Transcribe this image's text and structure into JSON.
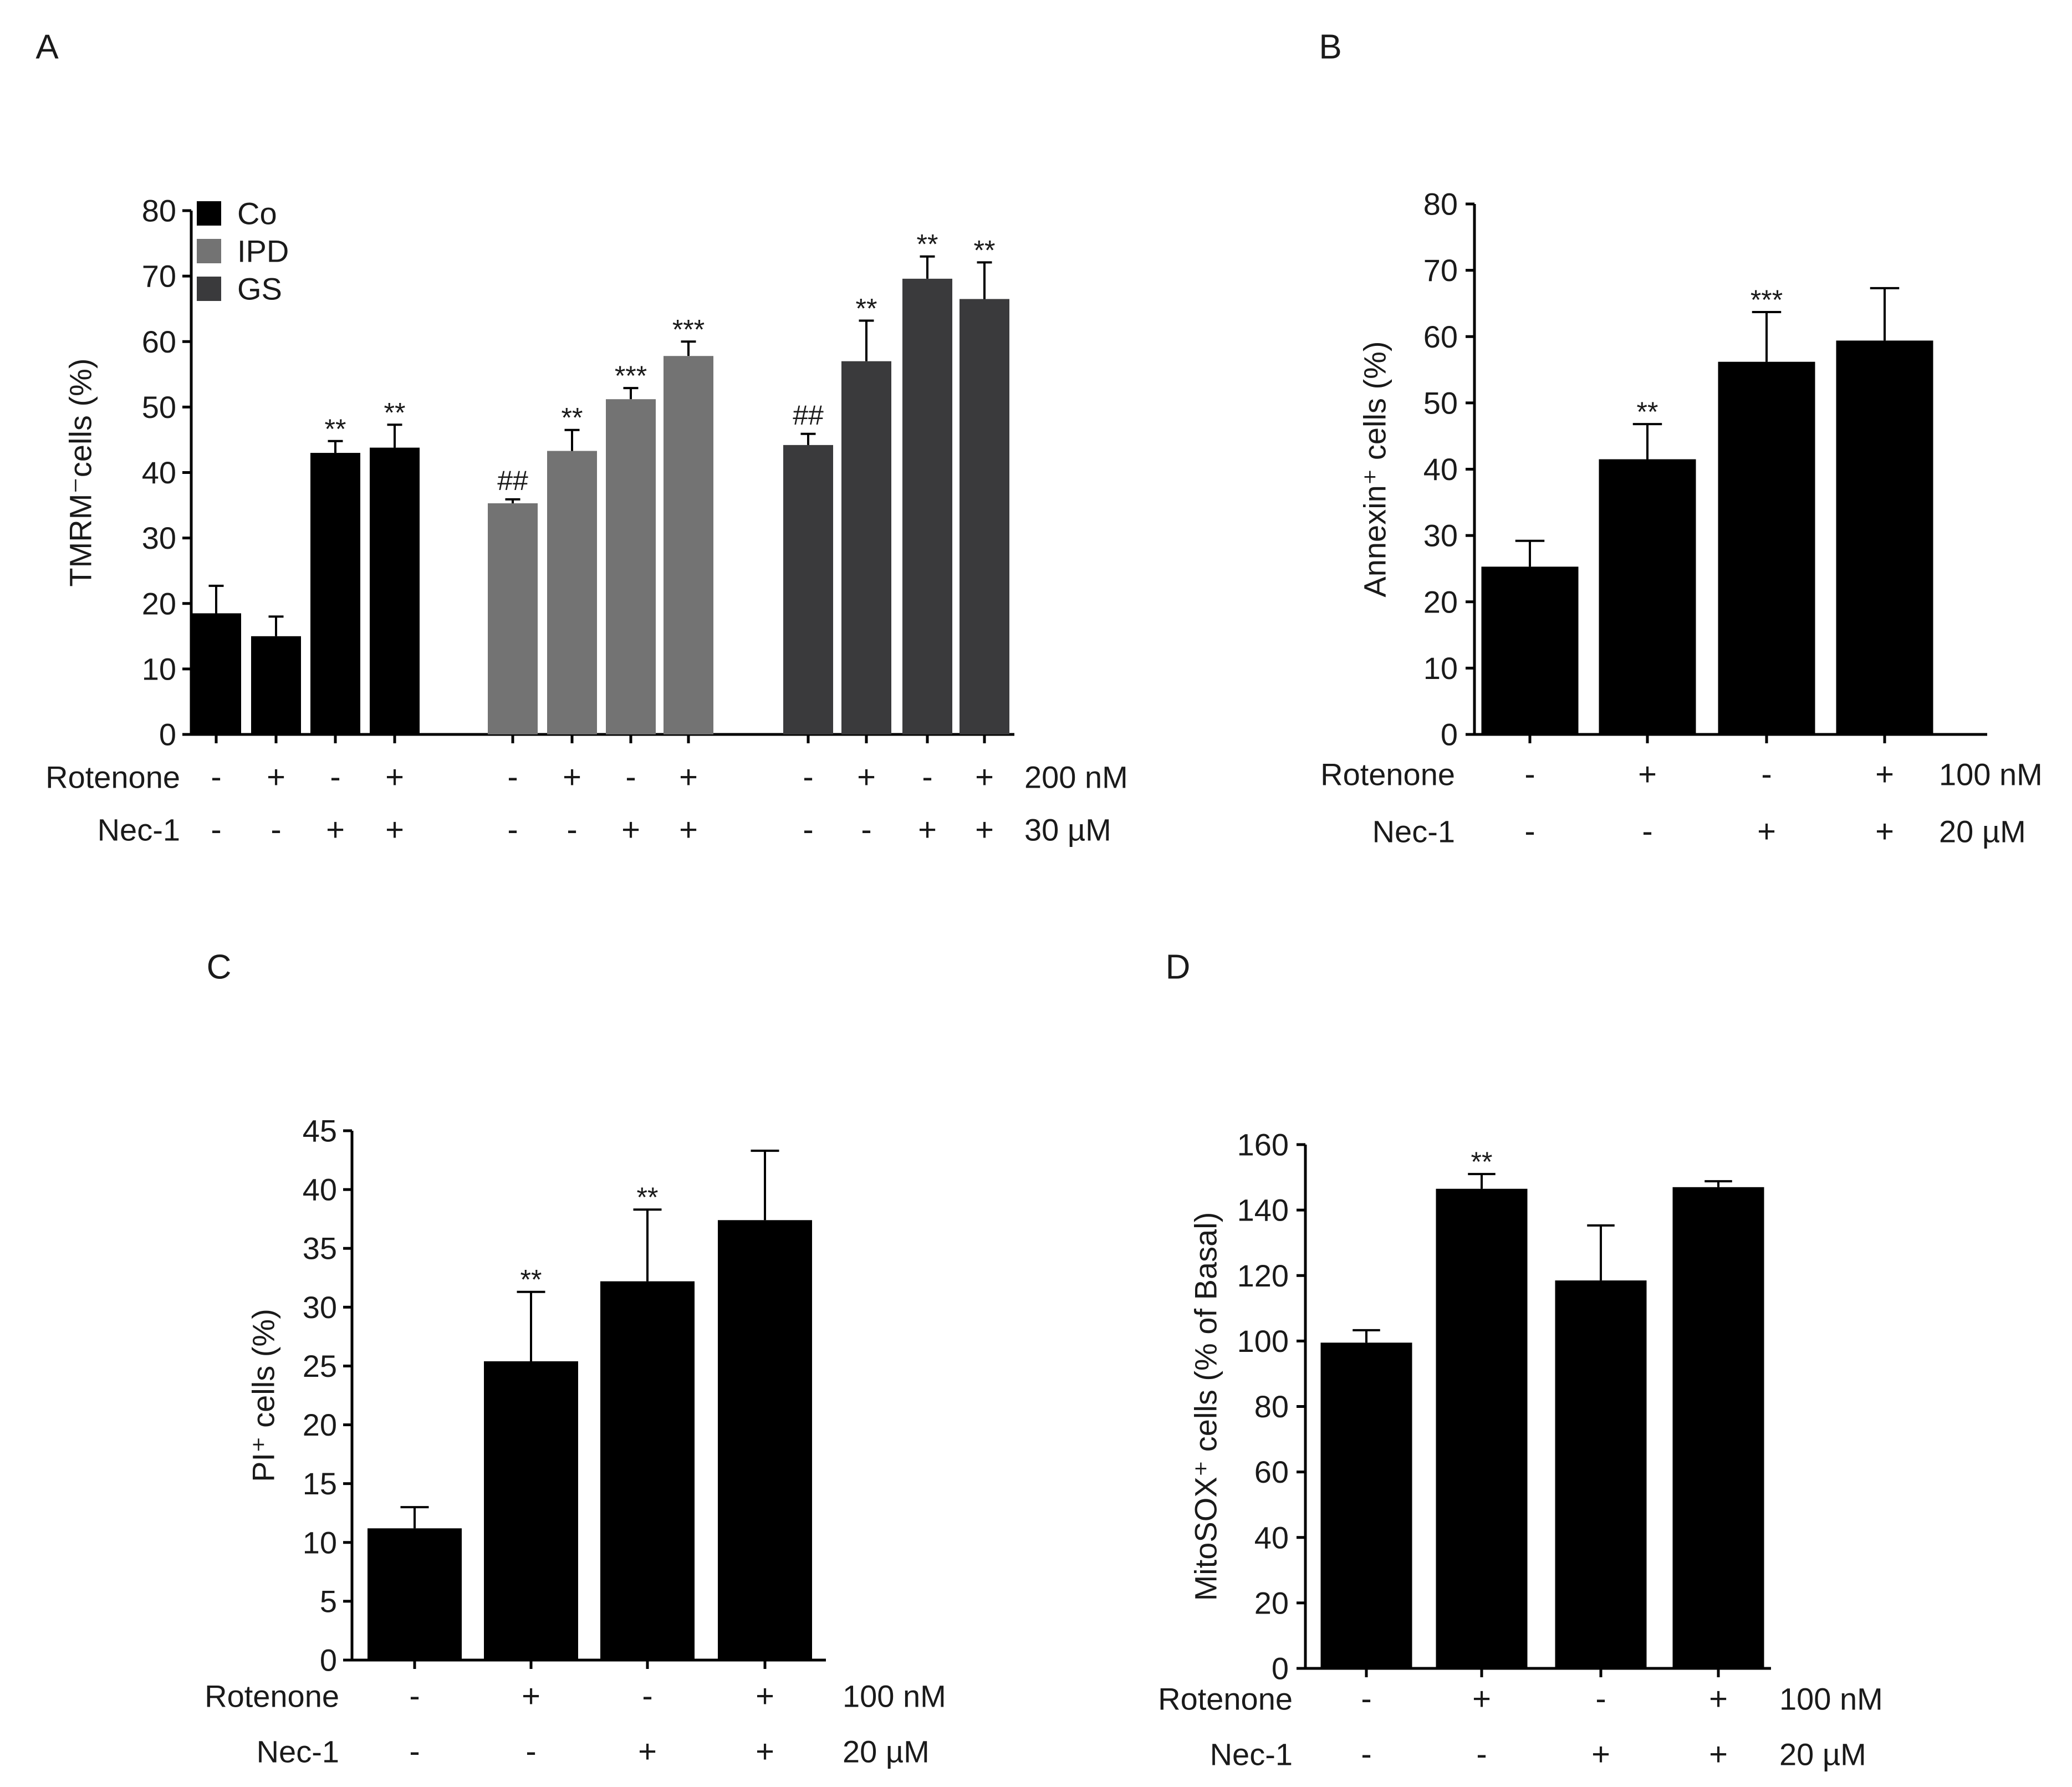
{
  "chart_data": [
    {
      "type": "bar",
      "panel": "A",
      "ylabel": "TMRM⁻cells (%)",
      "ylim": [
        0,
        80
      ],
      "yticks": [
        0,
        10,
        20,
        30,
        40,
        50,
        60,
        70,
        80
      ],
      "rows": [
        {
          "label": "Rotenone",
          "unit": "200 nM"
        },
        {
          "label": "Nec-1",
          "unit": "30 µM"
        }
      ],
      "legend": {
        "position": "top-left",
        "entries": [
          {
            "name": "Co",
            "color": "#000000"
          },
          {
            "name": "IPD",
            "color": "#737373"
          },
          {
            "name": "GS",
            "color": "#3a3a3c"
          }
        ]
      },
      "groups": [
        {
          "name": "Co",
          "color": "#000000",
          "bars": [
            {
              "value": 18.5,
              "err": 4.2,
              "rotenone": "-",
              "nec1": "-",
              "sig": ""
            },
            {
              "value": 15.0,
              "err": 3.0,
              "rotenone": "+",
              "nec1": "-",
              "sig": ""
            },
            {
              "value": 43.0,
              "err": 1.8,
              "rotenone": "-",
              "nec1": "+",
              "sig": "**"
            },
            {
              "value": 43.8,
              "err": 3.5,
              "rotenone": "+",
              "nec1": "+",
              "sig": "**"
            }
          ]
        },
        {
          "name": "IPD",
          "color": "#737373",
          "bars": [
            {
              "value": 35.3,
              "err": 0.6,
              "rotenone": "-",
              "nec1": "-",
              "sig": "##"
            },
            {
              "value": 43.3,
              "err": 3.2,
              "rotenone": "+",
              "nec1": "-",
              "sig": "**"
            },
            {
              "value": 51.2,
              "err": 1.7,
              "rotenone": "-",
              "nec1": "+",
              "sig": "***"
            },
            {
              "value": 57.8,
              "err": 2.2,
              "rotenone": "+",
              "nec1": "+",
              "sig": "***"
            }
          ]
        },
        {
          "name": "GS",
          "color": "#3a3a3c",
          "bars": [
            {
              "value": 44.2,
              "err": 1.7,
              "rotenone": "-",
              "nec1": "-",
              "sig": "##"
            },
            {
              "value": 57.0,
              "err": 6.2,
              "rotenone": "+",
              "nec1": "-",
              "sig": "**"
            },
            {
              "value": 69.6,
              "err": 3.4,
              "rotenone": "-",
              "nec1": "+",
              "sig": "**"
            },
            {
              "value": 66.5,
              "err": 5.6,
              "rotenone": "+",
              "nec1": "+",
              "sig": "**"
            }
          ]
        }
      ]
    },
    {
      "type": "bar",
      "panel": "B",
      "ylabel": "Annexin⁺ cells (%)",
      "ylim": [
        0,
        80
      ],
      "yticks": [
        0,
        10,
        20,
        30,
        40,
        50,
        60,
        70,
        80
      ],
      "rows": [
        {
          "label": "Rotenone",
          "unit": "100 nM"
        },
        {
          "label": "Nec-1",
          "unit": "20 µM"
        }
      ],
      "bars": [
        {
          "value": 25.3,
          "err": 3.9,
          "rotenone": "-",
          "nec1": "-",
          "sig": ""
        },
        {
          "value": 41.5,
          "err": 5.3,
          "rotenone": "+",
          "nec1": "-",
          "sig": "**"
        },
        {
          "value": 56.2,
          "err": 7.5,
          "rotenone": "-",
          "nec1": "+",
          "sig": "***"
        },
        {
          "value": 59.4,
          "err": 7.9,
          "rotenone": "+",
          "nec1": "+",
          "sig": ""
        }
      ]
    },
    {
      "type": "bar",
      "panel": "C",
      "ylabel": "PI⁺ cells (%)",
      "ylim": [
        0,
        45
      ],
      "yticks": [
        0,
        5,
        10,
        15,
        20,
        25,
        30,
        35,
        40,
        45
      ],
      "rows": [
        {
          "label": "Rotenone",
          "unit": "100 nM"
        },
        {
          "label": "Nec-1",
          "unit": "20 µM"
        }
      ],
      "bars": [
        {
          "value": 11.2,
          "err": 1.8,
          "rotenone": "-",
          "nec1": "-",
          "sig": ""
        },
        {
          "value": 25.4,
          "err": 5.9,
          "rotenone": "+",
          "nec1": "-",
          "sig": "**"
        },
        {
          "value": 32.2,
          "err": 6.1,
          "rotenone": "-",
          "nec1": "+",
          "sig": "**"
        },
        {
          "value": 37.4,
          "err": 5.9,
          "rotenone": "+",
          "nec1": "+",
          "sig": ""
        }
      ]
    },
    {
      "type": "bar",
      "panel": "D",
      "ylabel": "MitoSOX⁺ cells (% of Basal)",
      "ylim": [
        0,
        160
      ],
      "yticks": [
        0,
        20,
        40,
        60,
        80,
        100,
        120,
        140,
        160
      ],
      "rows": [
        {
          "label": "Rotenone",
          "unit": "100 nM"
        },
        {
          "label": "Nec-1",
          "unit": "20 µM"
        }
      ],
      "bars": [
        {
          "value": 99.5,
          "err": 3.8,
          "rotenone": "-",
          "nec1": "-",
          "sig": ""
        },
        {
          "value": 146.5,
          "err": 4.5,
          "rotenone": "+",
          "nec1": "-",
          "sig": "**"
        },
        {
          "value": 118.5,
          "err": 16.8,
          "rotenone": "-",
          "nec1": "+",
          "sig": ""
        },
        {
          "value": 147.0,
          "err": 1.8,
          "rotenone": "+",
          "nec1": "+",
          "sig": ""
        }
      ]
    }
  ]
}
